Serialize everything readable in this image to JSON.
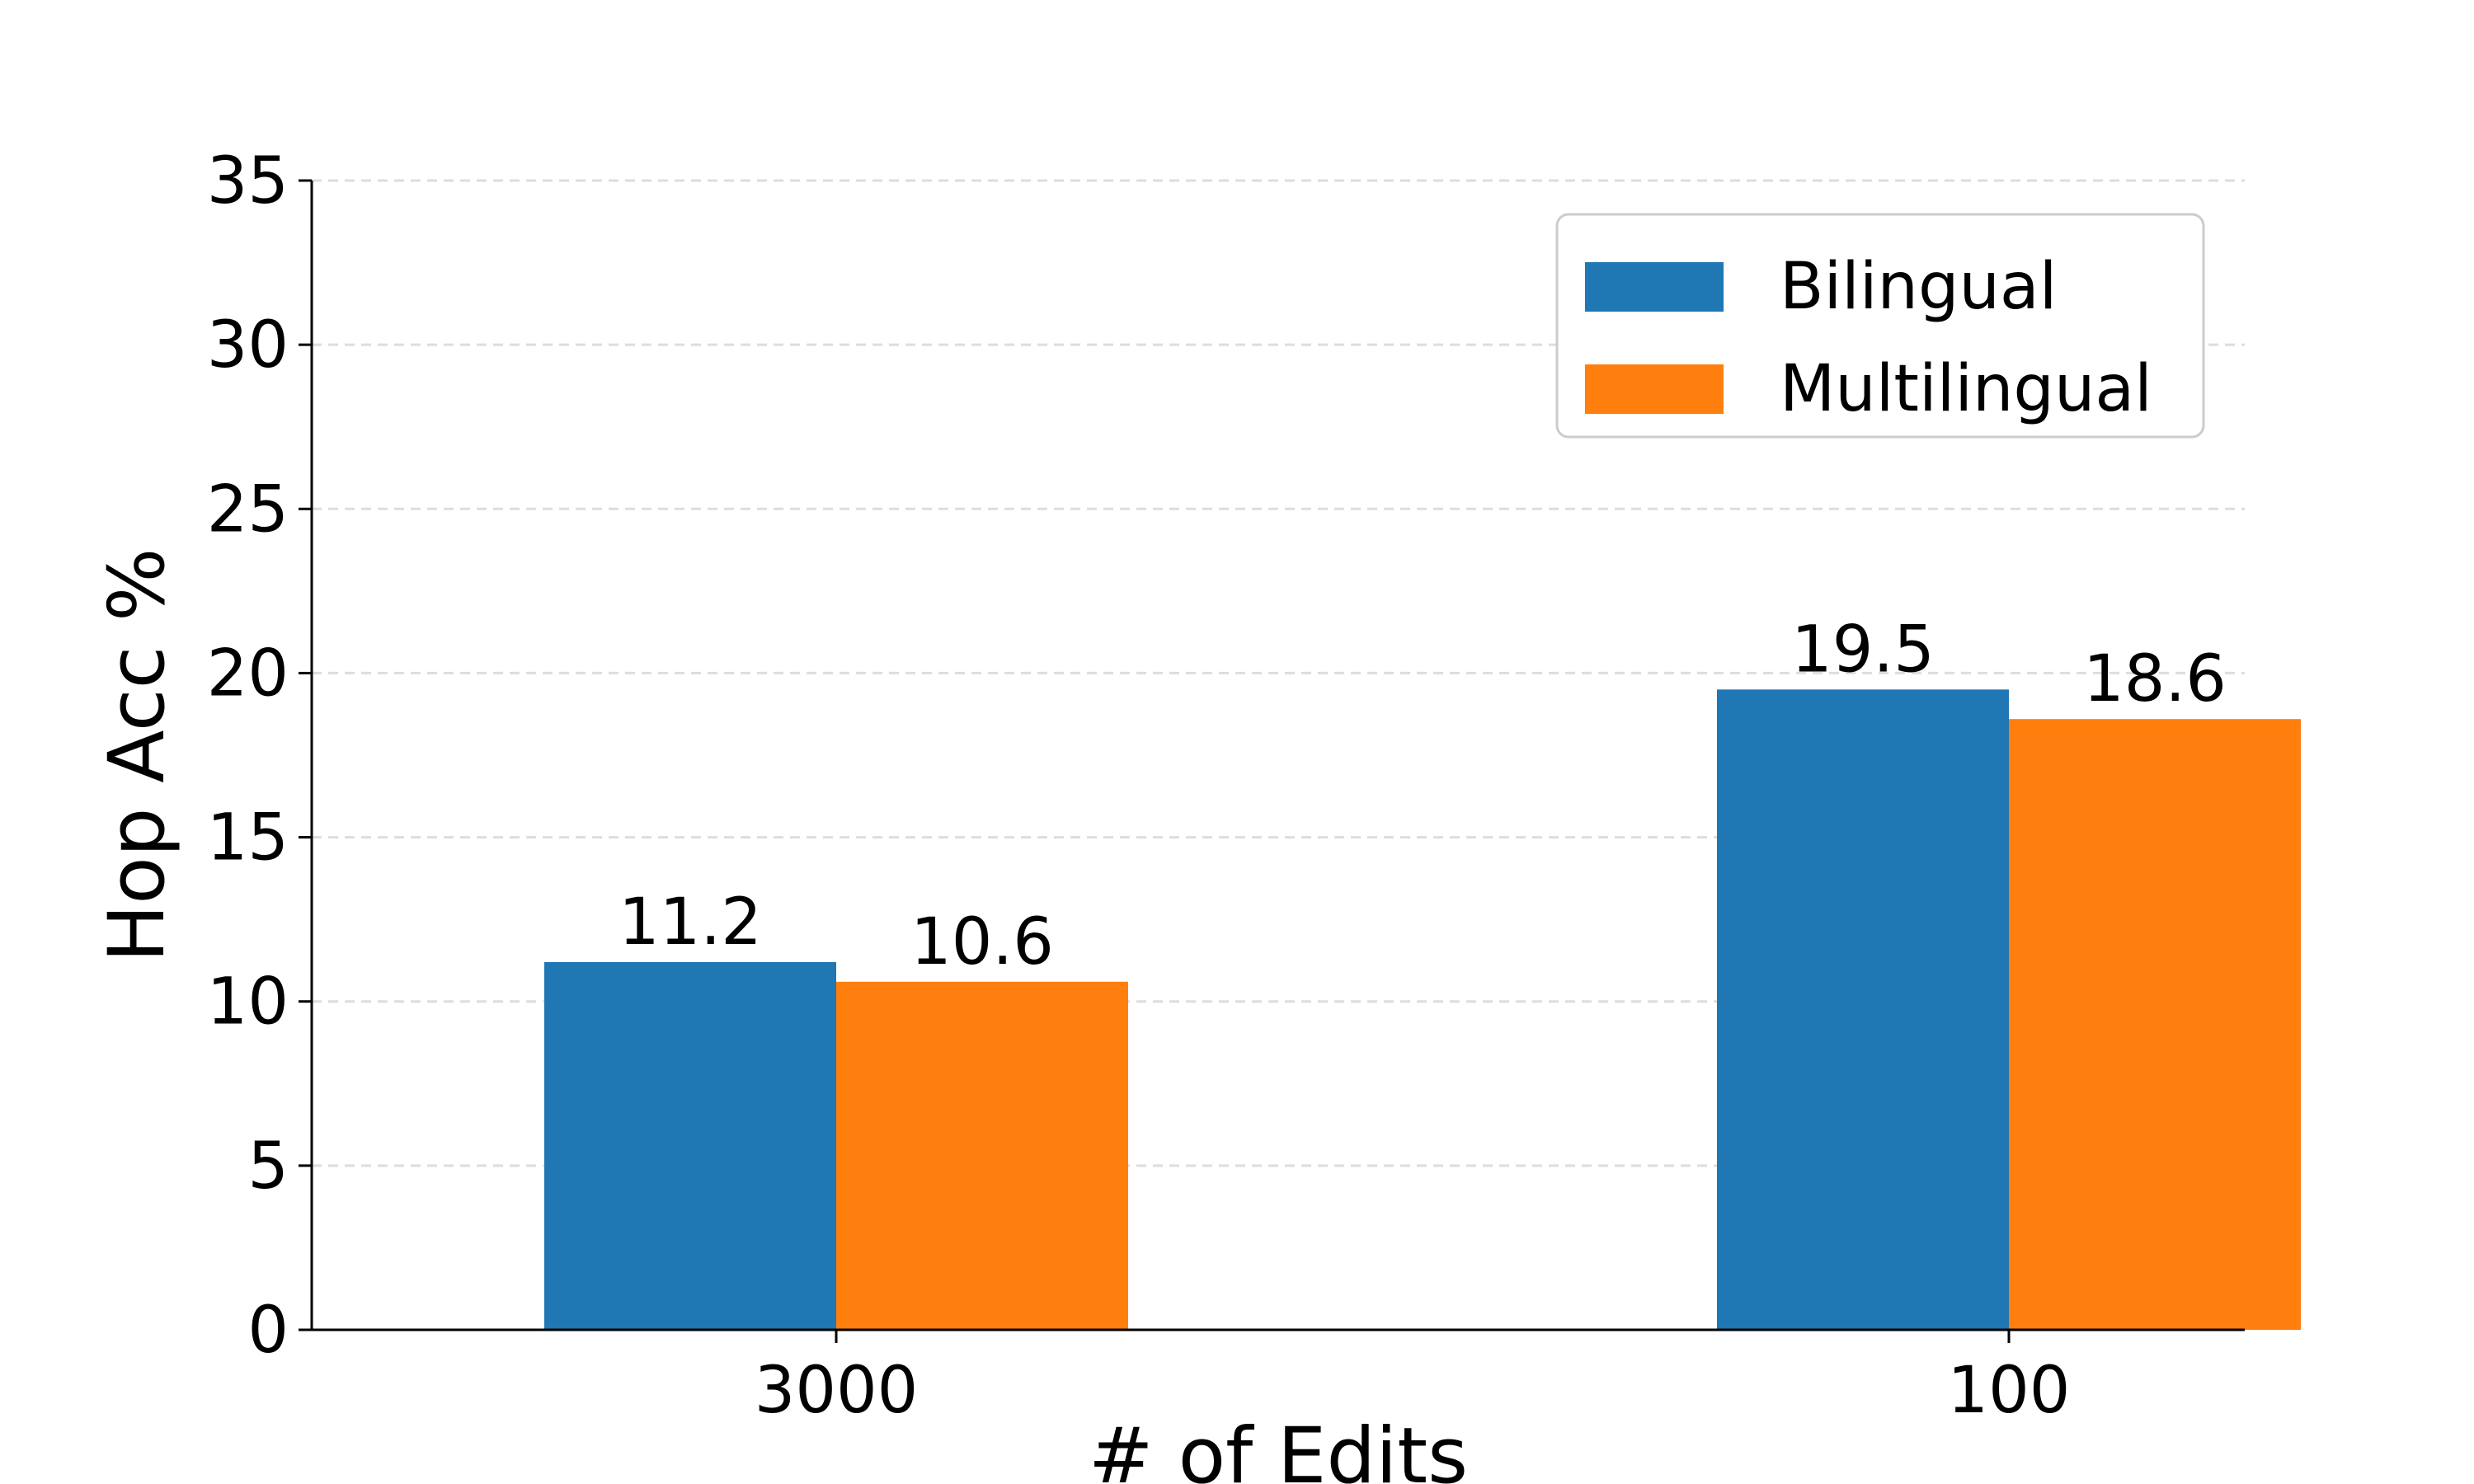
{
  "chart_data": {
    "type": "bar",
    "title": "",
    "xlabel": "# of Edits",
    "ylabel": "Hop Acc %",
    "categories": [
      "3000",
      "100"
    ],
    "series": [
      {
        "name": "Bilingual",
        "values": [
          11.2,
          19.5
        ],
        "labels": [
          "11.2",
          "19.5"
        ],
        "color": "#1f77b4"
      },
      {
        "name": "Multilingual",
        "values": [
          10.6,
          18.6
        ],
        "labels": [
          "10.6",
          "18.6"
        ],
        "color": "#ff7f0e"
      }
    ],
    "ylim": [
      0,
      35
    ],
    "yticks": [
      0,
      5,
      10,
      15,
      20,
      25,
      30,
      35
    ],
    "ytick_labels": [
      "0",
      "5",
      "10",
      "15",
      "20",
      "25",
      "30",
      "35"
    ],
    "grid": {
      "y": true,
      "style": "dashed",
      "color": "#dddddd"
    },
    "legend": {
      "position": "top-right",
      "frame": true
    }
  }
}
